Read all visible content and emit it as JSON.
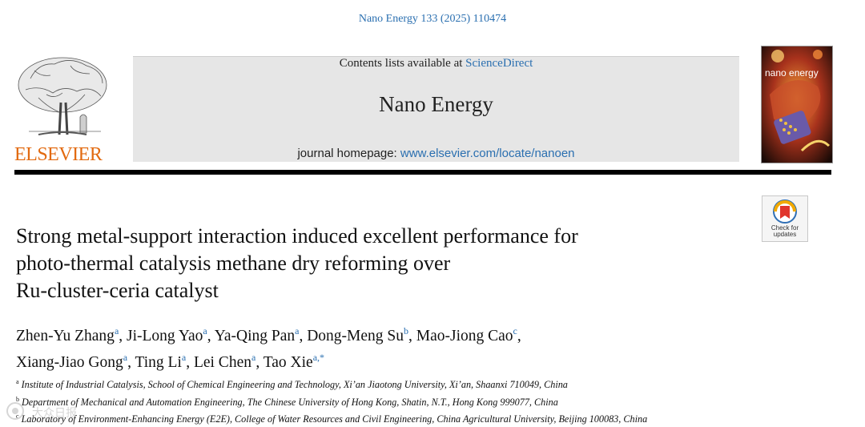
{
  "citation": "Nano Energy 133 (2025) 110474",
  "header": {
    "publisher_wordmark": "ELSEVIER",
    "contents_prefix": "Contents lists available at ",
    "contents_link": "ScienceDirect",
    "journal_name": "Nano Energy",
    "homepage_prefix": "journal homepage: ",
    "homepage_url": "www.elsevier.com/locate/nanoen",
    "cover_title": "nano energy",
    "check_updates_line1": "Check for",
    "check_updates_line2": "updates"
  },
  "article": {
    "title_lines": [
      "Strong metal-support interaction induced excellent performance for",
      "photo-thermal catalysis methane dry reforming over",
      "Ru-cluster-ceria catalyst"
    ],
    "authors": [
      {
        "name": "Zhen-Yu Zhang",
        "aff": "a"
      },
      {
        "name": "Ji-Long Yao",
        "aff": "a"
      },
      {
        "name": "Ya-Qing Pan",
        "aff": "a"
      },
      {
        "name": "Dong-Meng Su",
        "aff": "b"
      },
      {
        "name": "Mao-Jiong Cao",
        "aff": "c"
      },
      {
        "name": "Xiang-Jiao Gong",
        "aff": "a"
      },
      {
        "name": "Ting Li",
        "aff": "a"
      },
      {
        "name": "Lei Chen",
        "aff": "a"
      },
      {
        "name": "Tao Xie",
        "aff": "a,*"
      }
    ],
    "affiliations": [
      {
        "key": "a",
        "text": "Institute of Industrial Catalysis, School of Chemical Engineering and Technology, Xi’an Jiaotong University, Xi’an, Shaanxi 710049, China"
      },
      {
        "key": "b",
        "text": "Department of Mechanical and Automation Engineering, The Chinese University of Hong Kong, Shatin, N.T., Hong Kong 999077, China"
      },
      {
        "key": "c",
        "text": "Laboratory of Environment-Enhancing Energy (E2E), College of Water Resources and Civil Engineering, China Agricultural University, Beijing 100083, China"
      }
    ]
  },
  "watermark": {
    "text": "大众日报"
  },
  "colors": {
    "link": "#2a6fb0",
    "elsevier_orange": "#e26a10",
    "journal_band": "#e6e6e6"
  }
}
